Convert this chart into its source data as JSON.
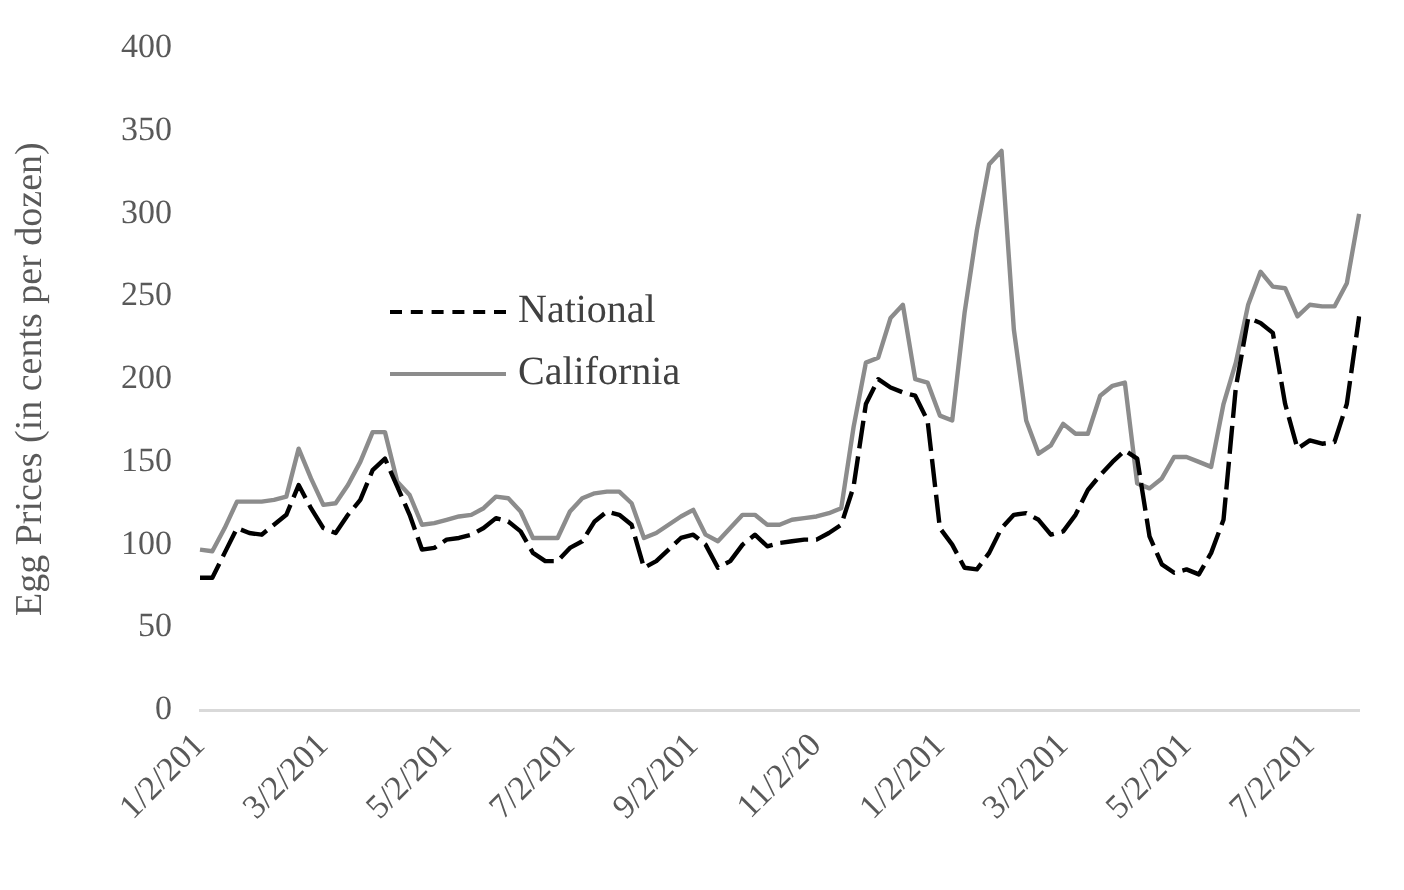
{
  "chart_data": {
    "type": "line",
    "ylabel": "Egg Prices (in cents per dozen)",
    "categories": [
      "1/2/201",
      null,
      null,
      null,
      null,
      null,
      null,
      null,
      null,
      null,
      "3/2/201",
      null,
      null,
      null,
      null,
      null,
      null,
      null,
      null,
      null,
      "5/2/201",
      null,
      null,
      null,
      null,
      null,
      null,
      null,
      null,
      null,
      "7/2/201",
      null,
      null,
      null,
      null,
      null,
      null,
      null,
      null,
      null,
      "9/2/201",
      null,
      null,
      null,
      null,
      null,
      null,
      null,
      null,
      null,
      "11/2/20",
      null,
      null,
      null,
      null,
      null,
      null,
      null,
      null,
      null,
      "1/2/201",
      null,
      null,
      null,
      null,
      null,
      null,
      null,
      null,
      null,
      "3/2/201",
      null,
      null,
      null,
      null,
      null,
      null,
      null,
      null,
      null,
      "5/2/201",
      null,
      null,
      null,
      null,
      null,
      null,
      null,
      null,
      null,
      "7/2/201",
      null,
      null,
      null,
      null
    ],
    "series": [
      {
        "name": "National",
        "color": "#000000",
        "line_style": "dashed",
        "values": [
          80,
          80,
          95,
          110,
          107,
          106,
          112,
          118,
          136,
          122,
          110,
          107,
          118,
          127,
          145,
          152,
          135,
          118,
          97,
          98,
          103,
          104,
          106,
          110,
          116,
          114,
          108,
          95,
          90,
          90,
          98,
          102,
          114,
          120,
          118,
          112,
          86,
          90,
          97,
          104,
          106,
          100,
          86,
          90,
          100,
          106,
          99,
          101,
          102,
          103,
          103,
          107,
          112,
          135,
          185,
          200,
          195,
          192,
          190,
          175,
          110,
          100,
          86,
          85,
          95,
          110,
          118,
          119,
          115,
          106,
          108,
          118,
          133,
          142,
          150,
          157,
          152,
          105,
          88,
          83,
          85,
          82,
          95,
          115,
          195,
          237,
          234,
          228,
          185,
          158,
          163,
          161,
          162,
          185,
          238
        ]
      },
      {
        "name": "California",
        "color": "#8c8c8c",
        "line_style": "solid",
        "values": [
          97,
          96,
          110,
          126,
          126,
          126,
          127,
          129,
          158,
          140,
          124,
          125,
          136,
          150,
          168,
          168,
          138,
          130,
          112,
          113,
          115,
          117,
          118,
          122,
          129,
          128,
          120,
          104,
          104,
          104,
          120,
          128,
          131,
          132,
          132,
          125,
          104,
          107,
          112,
          117,
          121,
          106,
          102,
          110,
          118,
          118,
          112,
          112,
          115,
          116,
          117,
          119,
          122,
          171,
          210,
          213,
          237,
          245,
          200,
          198,
          178,
          175,
          240,
          290,
          330,
          338,
          230,
          175,
          155,
          160,
          173,
          167,
          167,
          190,
          196,
          198,
          137,
          134,
          140,
          153,
          153,
          150,
          147,
          185,
          210,
          245,
          265,
          256,
          255,
          238,
          245,
          244,
          244,
          258,
          300
        ]
      }
    ],
    "ylim": [
      0,
      400
    ],
    "yticks": [
      0,
      50,
      100,
      150,
      200,
      250,
      300,
      350,
      400
    ],
    "grid": false,
    "legend": "top left",
    "marker": "none"
  }
}
